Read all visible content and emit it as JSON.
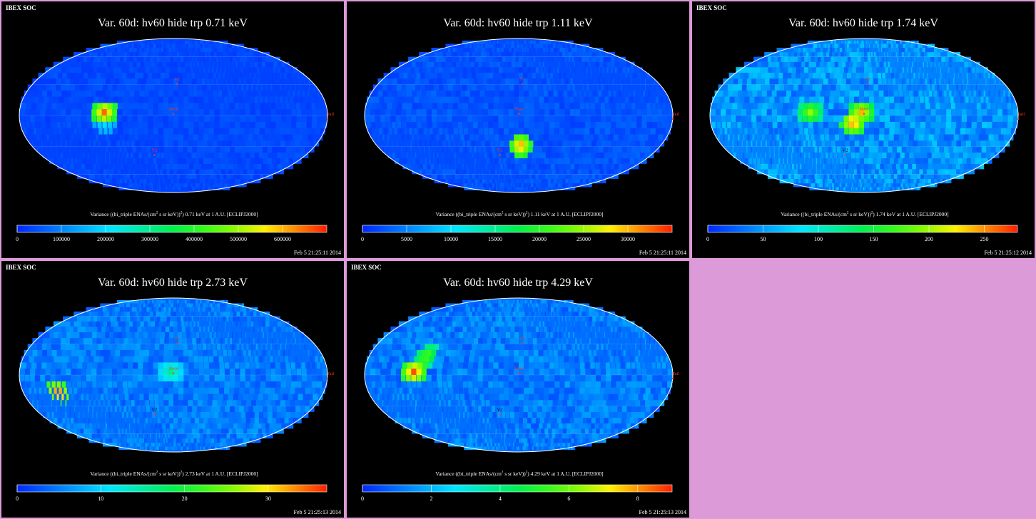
{
  "chart_data": [
    {
      "type": "heatmap",
      "projection": "mollweide",
      "brand": "IBEX SOC",
      "title": "Var. 60d: hv60 hide trp 0.71 keV",
      "colorbar_label_pre": "Variance ((bi_triple ENAs/(cm",
      "colorbar_label_sup": "2",
      "colorbar_label_post": " s sr keV))",
      "colorbar_label_sup2": "2",
      "colorbar_label_tail": ") 0.71 keV at 1 A.U. [ECLIPJ2000]",
      "colorbar_ticks": [
        "0",
        "100000",
        "200000",
        "300000",
        "400000",
        "500000",
        "600000"
      ],
      "colorbar_max": 700000,
      "timestamp": "Feb  5 21:25:11 2014",
      "markers": [
        "V1",
        "V2",
        "Nose",
        "Tail"
      ],
      "hotspots": [
        {
          "lon": 78,
          "lat": 0,
          "value": 650000
        },
        {
          "lon": 78,
          "lat": -10,
          "value": 220000
        }
      ],
      "background": 30000
    },
    {
      "type": "heatmap",
      "projection": "mollweide",
      "brand": "",
      "title": "Var. 60d: hv60 hide trp 1.11 keV",
      "colorbar_label_pre": "Variance ((bi_triple ENAs/(cm",
      "colorbar_label_sup": "2",
      "colorbar_label_post": " s sr keV))",
      "colorbar_label_sup2": "2",
      "colorbar_label_tail": ") 1.11 keV at 1 A.U. [ECLIPJ2000]",
      "colorbar_ticks": [
        "0",
        "5000",
        "10000",
        "15000",
        "20000",
        "25000",
        "30000"
      ],
      "colorbar_max": 35000,
      "timestamp": "Feb  5 21:25:11 2014",
      "markers": [
        "V1",
        "V2",
        "Nose",
        "Tail"
      ],
      "hotspots": [
        {
          "lon": -5,
          "lat": -32,
          "value": 32000
        }
      ],
      "background": 2000
    },
    {
      "type": "heatmap",
      "projection": "mollweide",
      "brand": "IBEX SOC",
      "title": "Var. 60d: hv60 hide trp 1.74 keV",
      "colorbar_label_pre": "Variance ((bi_triple ENAs/(cm",
      "colorbar_label_sup": "2",
      "colorbar_label_post": " s sr keV))",
      "colorbar_label_sup2": "2",
      "colorbar_label_tail": ") 1.74 keV at 1 A.U. [ECLIPJ2000]",
      "colorbar_ticks": [
        "0",
        "50",
        "100",
        "150",
        "200",
        "250"
      ],
      "colorbar_max": 280,
      "timestamp": "Feb  5 21:25:12 2014",
      "markers": [
        "V1",
        "V2",
        "Nose",
        "Tail"
      ],
      "hotspots": [
        {
          "lon": 0,
          "lat": 0,
          "value": 240
        },
        {
          "lon": 10,
          "lat": -10,
          "value": 260
        },
        {
          "lon": 60,
          "lat": 0,
          "value": 200
        }
      ],
      "background": 40
    },
    {
      "type": "heatmap",
      "projection": "mollweide",
      "brand": "IBEX SOC",
      "title": "Var. 60d: hv60 hide trp 2.73 keV",
      "colorbar_label_pre": "Variance ((bi_triple ENAs/(cm",
      "colorbar_label_sup": "2",
      "colorbar_label_post": " s sr keV))",
      "colorbar_label_sup2": "2",
      "colorbar_label_tail": ") 2.73 keV at 1 A.U. [ECLIPJ2000]",
      "colorbar_ticks": [
        "0",
        "10",
        "20",
        "30"
      ],
      "colorbar_max": 37,
      "timestamp": "Feb  5 21:25:13 2014",
      "markers": [
        "V1",
        "V2",
        "Nose",
        "Tail"
      ],
      "hotspots": [
        {
          "lon": 135,
          "lat": -20,
          "value": 36
        },
        {
          "lon": 0,
          "lat": 0,
          "value": 16
        }
      ],
      "background": 4
    },
    {
      "type": "heatmap",
      "projection": "mollweide",
      "brand": "IBEX SOC",
      "title": "Var. 60d: hv60 hide trp 4.29 keV",
      "colorbar_label_pre": "Variance ((bi_triple ENAs/(cm",
      "colorbar_label_sup": "2",
      "colorbar_label_post": " s sr keV))",
      "colorbar_label_sup2": "2",
      "colorbar_label_tail": ") 4.29 keV at 1 A.U. [ECLIPJ2000]",
      "colorbar_ticks": [
        "0",
        "2",
        "4",
        "6",
        "8"
      ],
      "colorbar_max": 9,
      "timestamp": "Feb  5 21:25:13 2014",
      "markers": [
        "V1",
        "V2",
        "Nose",
        "Tail"
      ],
      "hotspots": [
        {
          "lon": 120,
          "lat": 0,
          "value": 8.6
        },
        {
          "lon": 110,
          "lat": 15,
          "value": 6
        }
      ],
      "background": 1
    }
  ]
}
